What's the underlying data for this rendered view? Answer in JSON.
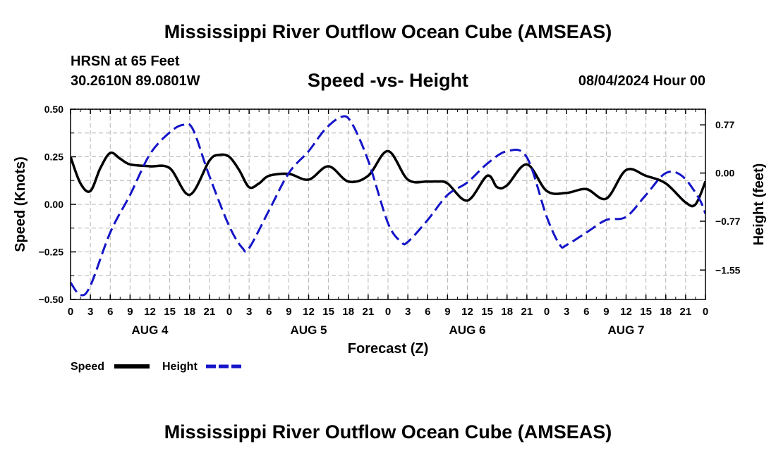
{
  "header": {
    "title": "Mississippi River Outflow Ocean Cube (AMSEAS)",
    "station": "HRSN at 65 Feet",
    "coords": "30.2610N  89.0801W",
    "chart_title": "Speed -vs- Height",
    "date_hour": "08/04/2024 Hour 00"
  },
  "footer": {
    "title": "Mississippi River Outflow Ocean Cube (AMSEAS)"
  },
  "colors": {
    "speed": "#000000",
    "height": "#1414c8",
    "grid": "#b4b4b4"
  },
  "chart_data": {
    "type": "line",
    "title": "Speed -vs- Height",
    "xlabel": "Forecast (Z)",
    "ylabel": "Speed (Knots)",
    "ylabel_right": "Height (feet)",
    "x_unit": "hours since 08/04/2024 00Z",
    "xlim": [
      0,
      96
    ],
    "ylim": [
      -0.5,
      0.5
    ],
    "ylim_right": [
      -2.02,
      1.02
    ],
    "xticks": [
      0,
      3,
      6,
      9,
      12,
      15,
      18,
      21,
      24,
      27,
      30,
      33,
      36,
      39,
      42,
      45,
      48,
      51,
      54,
      57,
      60,
      63,
      66,
      69,
      72,
      75,
      78,
      81,
      84,
      87,
      90,
      93,
      96
    ],
    "xtick_labels": [
      "0",
      "3",
      "6",
      "9",
      "12",
      "15",
      "18",
      "21",
      "0",
      "3",
      "6",
      "9",
      "12",
      "15",
      "18",
      "21",
      "0",
      "3",
      "6",
      "9",
      "12",
      "15",
      "18",
      "21",
      "0",
      "3",
      "6",
      "9",
      "12",
      "15",
      "18",
      "21",
      "0"
    ],
    "yticks_left": [
      -0.5,
      -0.25,
      0.0,
      0.25,
      0.5
    ],
    "yticks_left_labels": [
      "−0.50",
      "−0.25",
      "0.00",
      "0.25",
      "0.50"
    ],
    "yticks_right": [
      -1.55,
      -0.77,
      0.0,
      0.77
    ],
    "yticks_right_labels": [
      "−1.55",
      "−0.77",
      "0.00",
      "0.77"
    ],
    "day_labels": [
      {
        "label": "AUG 4",
        "x": 12
      },
      {
        "label": "AUG 5",
        "x": 36
      },
      {
        "label": "AUG 6",
        "x": 60
      },
      {
        "label": "AUG 7",
        "x": 84
      }
    ],
    "grid": true,
    "series": [
      {
        "name": "Speed",
        "axis": "left",
        "style": "solid",
        "x": [
          0,
          1.5,
          3,
          4.5,
          6,
          7.5,
          9,
          12,
          15,
          18,
          21,
          22.5,
          24,
          25.5,
          27,
          28.5,
          30,
          33,
          36,
          39,
          42,
          45,
          48,
          51,
          54,
          55.5,
          57,
          60,
          63,
          64.5,
          66,
          69,
          72,
          75,
          78,
          81,
          84,
          87,
          90,
          93,
          94.5,
          96
        ],
        "values": [
          0.25,
          0.11,
          0.07,
          0.19,
          0.27,
          0.24,
          0.21,
          0.2,
          0.19,
          0.05,
          0.23,
          0.26,
          0.25,
          0.18,
          0.09,
          0.11,
          0.15,
          0.16,
          0.13,
          0.2,
          0.12,
          0.15,
          0.28,
          0.13,
          0.12,
          0.12,
          0.11,
          0.02,
          0.15,
          0.09,
          0.1,
          0.21,
          0.07,
          0.06,
          0.08,
          0.03,
          0.18,
          0.15,
          0.11,
          0.01,
          0.0,
          0.12
        ]
      },
      {
        "name": "Height",
        "axis": "right",
        "style": "dashed",
        "x": [
          0,
          1.5,
          3,
          6,
          9,
          12,
          15,
          17,
          18.5,
          21,
          24,
          26,
          27,
          30,
          33,
          36,
          38.5,
          41,
          42.5,
          45,
          48,
          50,
          51,
          54,
          57,
          60,
          63,
          66,
          69,
          72,
          74,
          75,
          78,
          81,
          84,
          87,
          90,
          92.5,
          95,
          96
        ],
        "values": [
          -1.75,
          -1.95,
          -1.8,
          -0.95,
          -0.35,
          0.3,
          0.65,
          0.77,
          0.7,
          -0.05,
          -0.85,
          -1.2,
          -1.2,
          -0.6,
          0.0,
          0.35,
          0.7,
          0.9,
          0.8,
          0.2,
          -0.8,
          -1.1,
          -1.1,
          -0.75,
          -0.35,
          -0.15,
          0.15,
          0.35,
          0.25,
          -0.7,
          -1.15,
          -1.15,
          -0.95,
          -0.75,
          -0.7,
          -0.35,
          0.0,
          -0.05,
          -0.4,
          -0.65
        ]
      }
    ],
    "legend": [
      {
        "label": "Speed",
        "series": "Speed"
      },
      {
        "label": "Height",
        "series": "Height"
      }
    ],
    "legend_position": "bottom-left"
  }
}
